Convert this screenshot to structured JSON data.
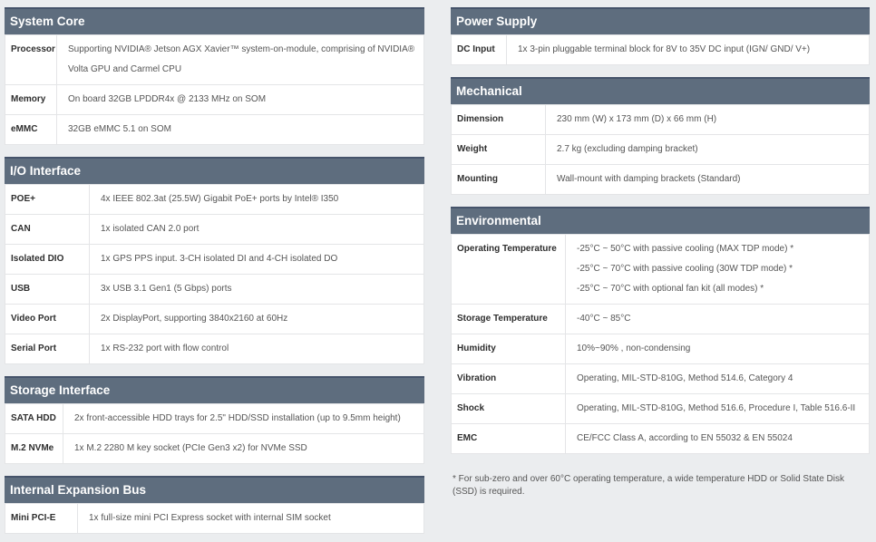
{
  "colors": {
    "header_background": "#5e6d7e",
    "header_top_border": "#45536a",
    "page_background": "#ebedef",
    "table_background": "#ffffff",
    "border": "#e4e5e7",
    "label_text": "#2e2e2e",
    "value_text": "#555555"
  },
  "columns": [
    {
      "name": "column-left",
      "sections": [
        {
          "id": "system-core",
          "title": "System Core",
          "rows": [
            {
              "label": "Processor",
              "lines": [
                "Supporting NVIDIA® Jetson AGX Xavier™ system-on-module, comprising of NVIDIA® Volta GPU and Carmel CPU"
              ]
            },
            {
              "label": "Memory",
              "lines": [
                "On board 32GB LPDDR4x @ 2133 MHz on SOM"
              ]
            },
            {
              "label": "eMMC",
              "lines": [
                "32GB eMMC 5.1 on SOM"
              ]
            }
          ]
        },
        {
          "id": "io-interface",
          "title": "I/O Interface",
          "rows": [
            {
              "label": "POE+",
              "lines": [
                "4x IEEE 802.3at (25.5W) Gigabit PoE+ ports by Intel® I350"
              ]
            },
            {
              "label": "CAN",
              "lines": [
                "1x isolated CAN 2.0 port"
              ]
            },
            {
              "label": "Isolated DIO",
              "lines": [
                "1x GPS PPS input. 3-CH isolated DI and 4-CH isolated DO"
              ]
            },
            {
              "label": "USB",
              "lines": [
                "3x USB 3.1 Gen1 (5 Gbps) ports"
              ]
            },
            {
              "label": "Video Port",
              "lines": [
                "2x DisplayPort, supporting 3840x2160 at 60Hz"
              ]
            },
            {
              "label": "Serial Port",
              "lines": [
                "1x RS-232 port with flow control"
              ]
            }
          ]
        },
        {
          "id": "storage-interface",
          "title": "Storage Interface",
          "rows": [
            {
              "label": "SATA HDD",
              "lines": [
                "2x front-accessible HDD trays for 2.5\" HDD/SSD installation (up to 9.5mm height)"
              ]
            },
            {
              "label": "M.2 NVMe",
              "lines": [
                "1x M.2 2280 M key socket (PCIe Gen3 x2) for NVMe SSD"
              ]
            }
          ]
        },
        {
          "id": "internal-expansion-bus",
          "title": "Internal Expansion Bus",
          "rows": [
            {
              "label": "Mini PCI-E",
              "lines": [
                "1x full-size mini PCI Express socket with internal SIM socket"
              ]
            }
          ]
        }
      ]
    },
    {
      "name": "column-right",
      "sections": [
        {
          "id": "power-supply",
          "title": "Power Supply",
          "rows": [
            {
              "label": "DC Input",
              "lines": [
                "1x 3-pin pluggable terminal block for 8V to 35V DC input (IGN/ GND/ V+)"
              ]
            }
          ]
        },
        {
          "id": "mechanical",
          "title": "Mechanical",
          "rows": [
            {
              "label": "Dimension",
              "lines": [
                "230 mm (W) x 173 mm (D) x 66 mm (H)"
              ]
            },
            {
              "label": "Weight",
              "lines": [
                "2.7 kg (excluding damping bracket)"
              ]
            },
            {
              "label": "Mounting",
              "lines": [
                "Wall-mount with damping brackets (Standard)"
              ]
            }
          ]
        },
        {
          "id": "environmental",
          "title": "Environmental",
          "rows": [
            {
              "label": "Operating Temperature",
              "lines": [
                "-25°C ~ 50°C with passive cooling (MAX TDP mode) *",
                "-25°C ~ 70°C with passive cooling (30W TDP mode) *",
                "-25°C ~ 70°C with optional fan kit (all modes) *"
              ]
            },
            {
              "label": "Storage Temperature",
              "lines": [
                "-40°C ~ 85°C"
              ]
            },
            {
              "label": "Humidity",
              "lines": [
                "10%~90% , non-condensing"
              ]
            },
            {
              "label": "Vibration",
              "lines": [
                "Operating, MIL-STD-810G, Method 514.6, Category 4"
              ]
            },
            {
              "label": "Shock",
              "lines": [
                "Operating, MIL-STD-810G, Method 516.6, Procedure I, Table 516.6-II"
              ]
            },
            {
              "label": "EMC",
              "lines": [
                "CE/FCC Class A, according to EN 55032 & EN 55024"
              ]
            }
          ]
        }
      ],
      "footnote": "* For sub-zero and over 60°C operating temperature, a wide temperature HDD or Solid State Disk (SSD) is required."
    }
  ]
}
